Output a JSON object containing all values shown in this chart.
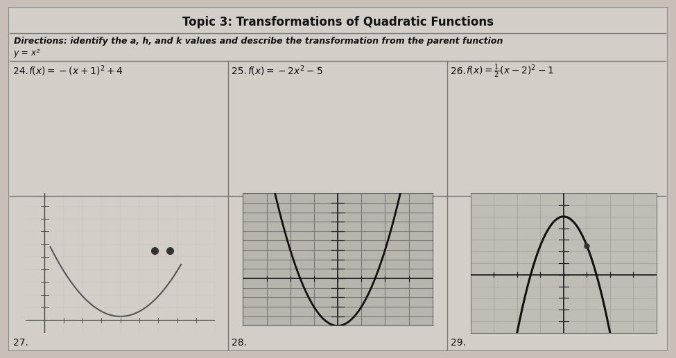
{
  "title": "Topic 3: Transformations of Quadratic Functions",
  "directions": "Directions: identify the a, h, and k values and describe the transformation from the parent function",
  "parent_func": "y = x²",
  "problem24_label": "24.",
  "problem24_formula": "$f(x) =-(x + 1)^2 + 4$",
  "problem25_label": "25.",
  "problem25_formula": "$f(x)  =  -2x^2 - 5$",
  "problem26_label": "26.",
  "problem26_formula": "$f(x) = \\frac{1}{2}(x - 2)^2 - 1$",
  "problem27_label": "27.",
  "problem28_label": "28.",
  "problem29_label": "29.",
  "bg_outer": "#c8c0b8",
  "bg_inner": "#d4cec8",
  "bg_graph27": "#ccc8c2",
  "bg_graph28": "#b8b4ae",
  "bg_graph29": "#c0bcb6",
  "line_color": "#666666",
  "text_color": "#111111",
  "curve_color": "#1a1a1a",
  "dot_color": "#2a2a2a",
  "title_fontsize": 12,
  "directions_fontsize": 9,
  "formula_fontsize": 10,
  "label_fontsize": 10
}
